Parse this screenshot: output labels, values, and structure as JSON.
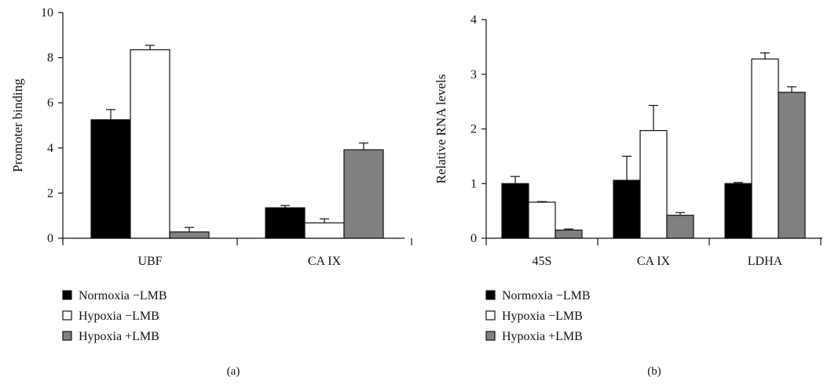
{
  "chart_data": [
    {
      "type": "bar",
      "panel_label": "(a)",
      "ylabel": "Promoter binding",
      "xlabel": "",
      "ylim": [
        0,
        10
      ],
      "yticks": [
        "0",
        "2",
        "4",
        "6",
        "8",
        "10"
      ],
      "categories": [
        "UBF",
        "CA IX"
      ],
      "series": [
        {
          "name": "Normoxia −LMB",
          "color": "#000000",
          "values": [
            5.25,
            1.35
          ],
          "errors": [
            0.45,
            0.1
          ]
        },
        {
          "name": "Hypoxia −LMB",
          "color": "#ffffff",
          "values": [
            8.35,
            0.68
          ],
          "errors": [
            0.2,
            0.18
          ]
        },
        {
          "name": "Hypoxia +LMB",
          "color": "#808080",
          "values": [
            0.28,
            3.92
          ],
          "errors": [
            0.2,
            0.3
          ]
        }
      ],
      "legend_position": "bottom-left",
      "grid": false
    },
    {
      "type": "bar",
      "panel_label": "(b)",
      "ylabel": "Relative RNA levels",
      "xlabel": "",
      "ylim": [
        0,
        4
      ],
      "yticks": [
        "0",
        "1",
        "2",
        "3",
        "4"
      ],
      "categories": [
        "45S",
        "CA IX",
        "LDHA"
      ],
      "series": [
        {
          "name": "Normoxia −LMB",
          "color": "#000000",
          "values": [
            1.0,
            1.06,
            1.0
          ],
          "errors": [
            0.13,
            0.44,
            0.02
          ]
        },
        {
          "name": "Hypoxia −LMB",
          "color": "#ffffff",
          "values": [
            0.66,
            1.97,
            3.28
          ],
          "errors": [
            0.01,
            0.46,
            0.11
          ]
        },
        {
          "name": "Hypoxia +LMB",
          "color": "#808080",
          "values": [
            0.15,
            0.42,
            2.67
          ],
          "errors": [
            0.02,
            0.05,
            0.1
          ]
        }
      ],
      "legend_position": "bottom-left",
      "grid": false
    }
  ]
}
